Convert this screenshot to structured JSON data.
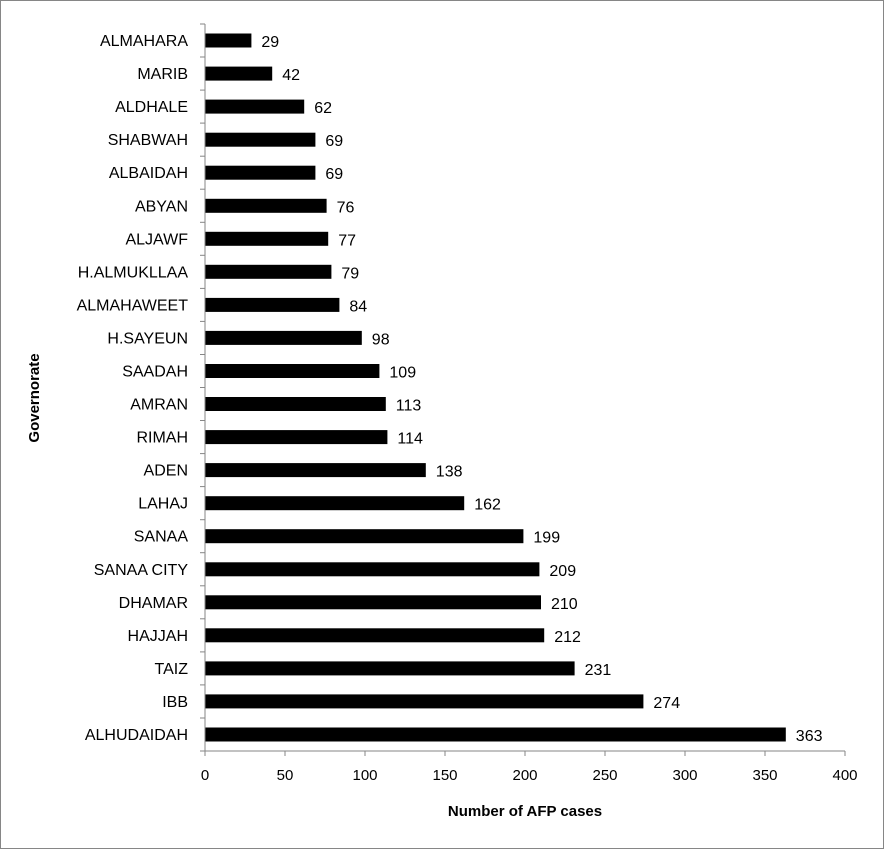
{
  "chart_data": {
    "type": "bar",
    "orientation": "horizontal",
    "categories": [
      "ALMAHARA",
      "MARIB",
      "ALDHALE",
      "SHABWAH",
      "ALBAIDAH",
      "ABYAN",
      "ALJAWF",
      "H.ALMUKLLAA",
      "ALMAHAWEET",
      "H.SAYEUN",
      "SAADAH",
      "AMRAN",
      "RIMAH",
      "ADEN",
      "LAHAJ",
      "SANAA",
      "SANAA CITY",
      "DHAMAR",
      "HAJJAH",
      "TAIZ",
      "IBB",
      "ALHUDAIDAH"
    ],
    "values": [
      29,
      42,
      62,
      69,
      69,
      76,
      77,
      79,
      84,
      98,
      109,
      113,
      114,
      138,
      162,
      199,
      209,
      210,
      212,
      231,
      274,
      363
    ],
    "xlabel": "Number of AFP cases",
    "ylabel": "Governorate",
    "xlim": [
      0,
      400
    ],
    "xticks": [
      0,
      50,
      100,
      150,
      200,
      250,
      300,
      350,
      400
    ],
    "grid": false,
    "legend": "none",
    "bar_color": "#000000"
  }
}
